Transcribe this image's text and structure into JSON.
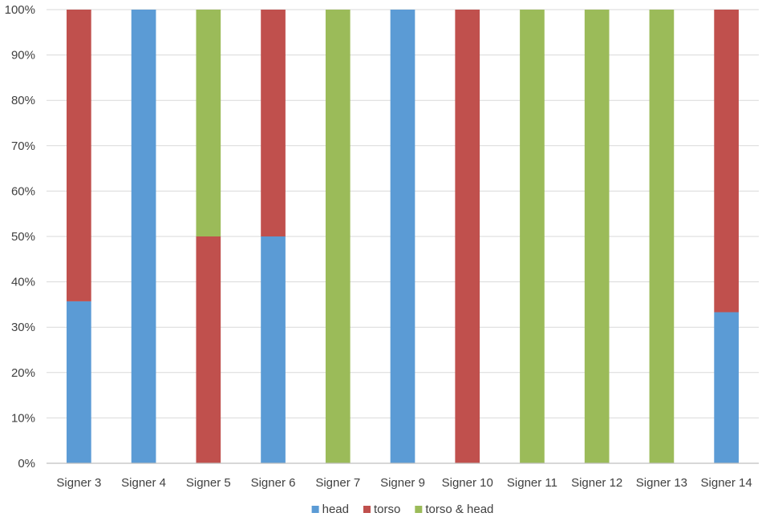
{
  "chart_data": {
    "type": "bar",
    "stacked": true,
    "title": "",
    "xlabel": "",
    "ylabel": "",
    "ylim": [
      0,
      100
    ],
    "yticks": [
      "0%",
      "10%",
      "20%",
      "30%",
      "40%",
      "50%",
      "60%",
      "70%",
      "80%",
      "90%",
      "100%"
    ],
    "grid": true,
    "legend_position": "bottom",
    "categories": [
      "Signer 3",
      "Signer 4",
      "Signer 5",
      "Signer 6",
      "Signer 7",
      "Signer 9",
      "Signer 10",
      "Signer 11",
      "Signer 12",
      "Signer 13",
      "Signer 14"
    ],
    "series": [
      {
        "name": "head",
        "color": "#5b9bd5",
        "values": [
          35.7,
          100,
          0,
          50,
          0,
          100,
          0,
          0,
          0,
          0,
          33.3
        ]
      },
      {
        "name": "torso",
        "color": "#c0504d",
        "values": [
          64.3,
          0,
          50,
          50,
          0,
          0,
          100,
          0,
          0,
          0,
          66.7
        ]
      },
      {
        "name": "torso & head",
        "color": "#9bbb59",
        "values": [
          0,
          0,
          50,
          0,
          100,
          0,
          0,
          100,
          100,
          100,
          0
        ]
      }
    ]
  }
}
